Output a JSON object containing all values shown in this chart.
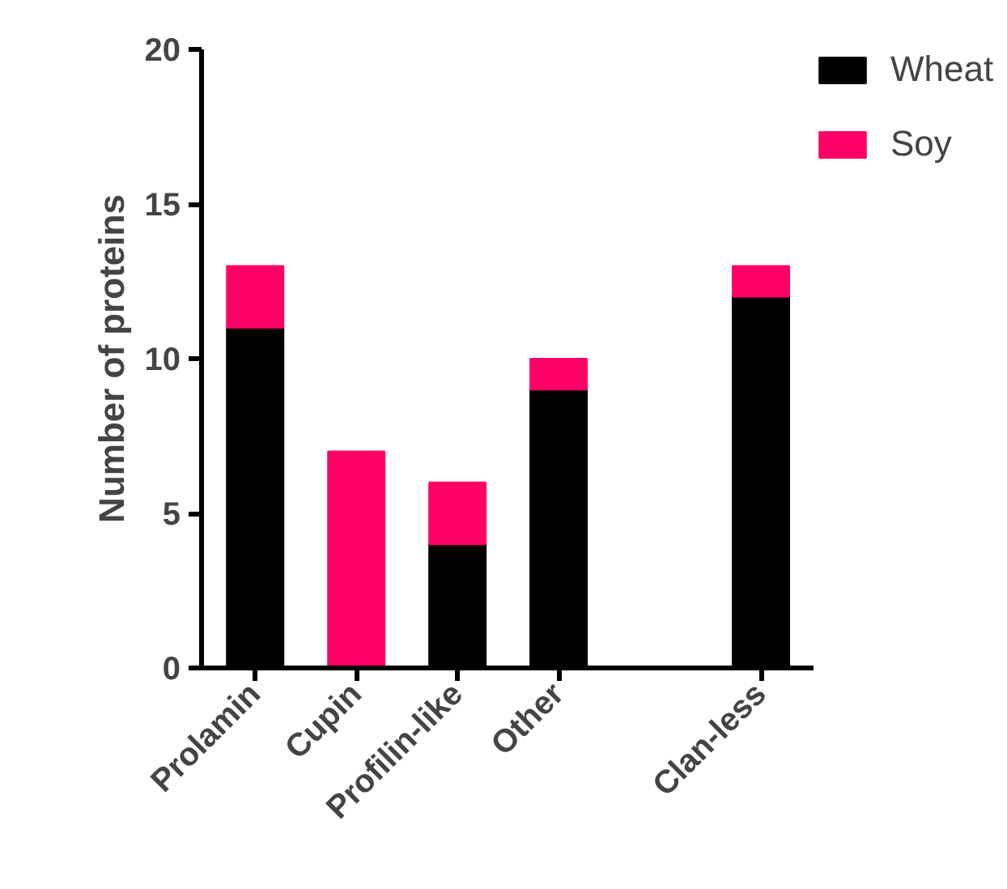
{
  "chart_data": {
    "type": "bar",
    "stacked": true,
    "ylabel": "Number of proteins",
    "categories": [
      "Prolamin",
      "Cupin",
      "Profilin-like",
      "Other",
      null,
      "Clan-less"
    ],
    "series": [
      {
        "name": "Wheat",
        "color": "#000000",
        "values": [
          11,
          0,
          4,
          9,
          null,
          12
        ]
      },
      {
        "name": "Soy",
        "color": "#ff0066",
        "values": [
          2,
          7,
          2,
          1,
          null,
          1
        ]
      }
    ],
    "ylim": [
      0,
      20
    ],
    "yticks": [
      0,
      5,
      10,
      15,
      20
    ],
    "grid": false,
    "legend": "top right"
  }
}
